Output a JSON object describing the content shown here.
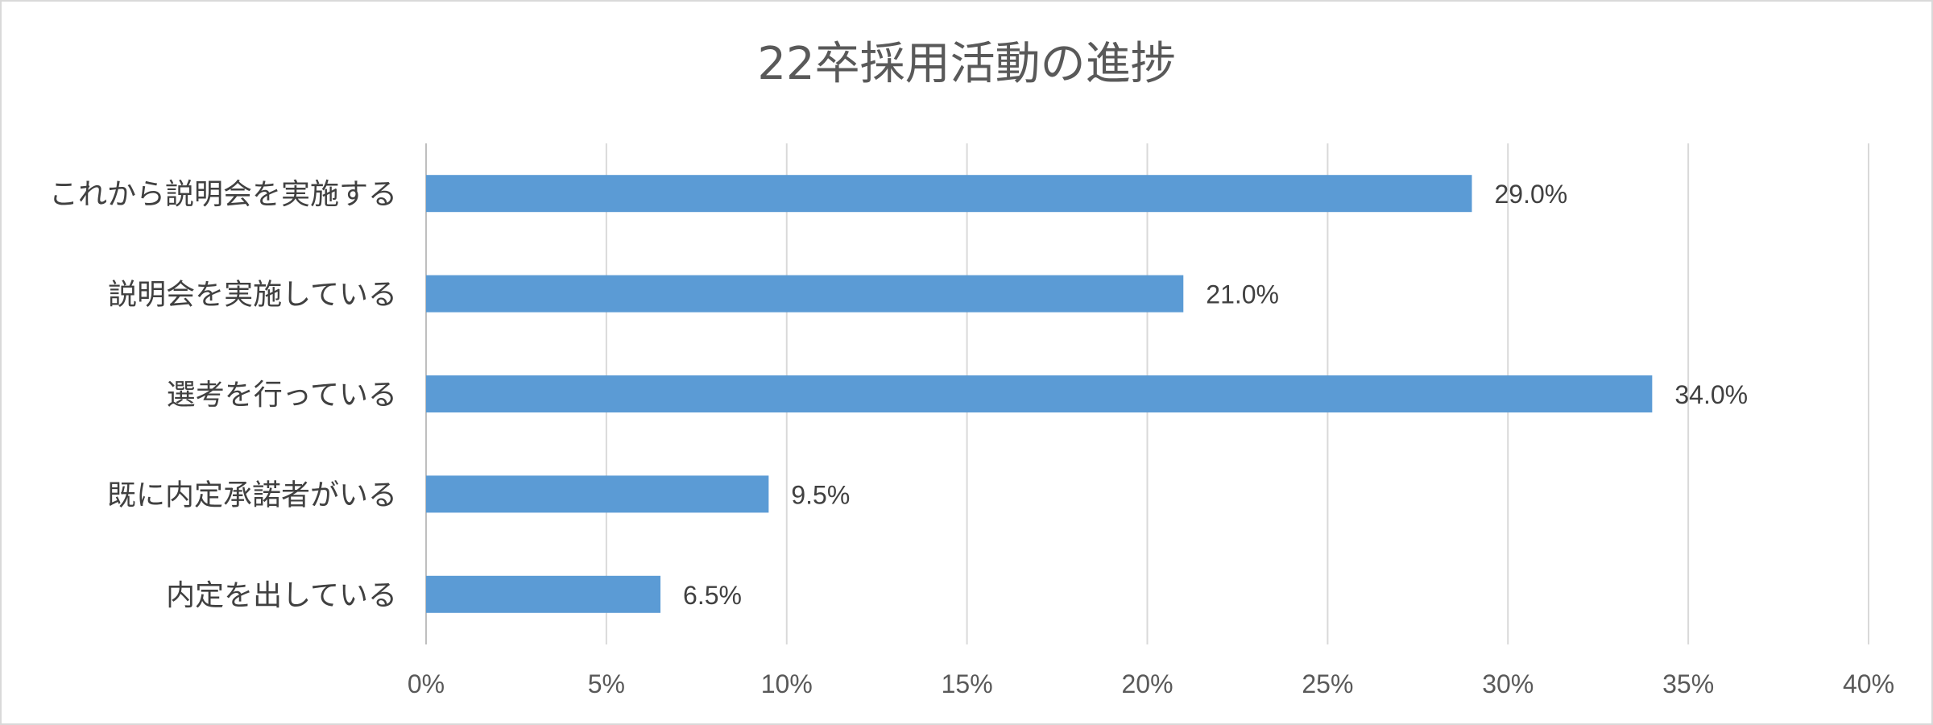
{
  "chart_data": {
    "type": "bar",
    "orientation": "horizontal",
    "title": "22卒採用活動の進捗",
    "categories": [
      "これから説明会を実施する",
      "説明会を実施している",
      "選考を行っている",
      "既に内定承諾者がいる",
      "内定を出している"
    ],
    "values": [
      29.0,
      21.0,
      34.0,
      9.5,
      6.5
    ],
    "value_labels": [
      "29.0%",
      "21.0%",
      "34.0%",
      "9.5%",
      "6.5%"
    ],
    "xlim": [
      0,
      40
    ],
    "x_ticks": [
      0,
      5,
      10,
      15,
      20,
      25,
      30,
      35,
      40
    ],
    "x_tick_labels": [
      "0%",
      "5%",
      "10%",
      "15%",
      "20%",
      "25%",
      "30%",
      "35%",
      "40%"
    ],
    "grid": true,
    "legend": "none",
    "bar_color": "#5b9bd5"
  }
}
